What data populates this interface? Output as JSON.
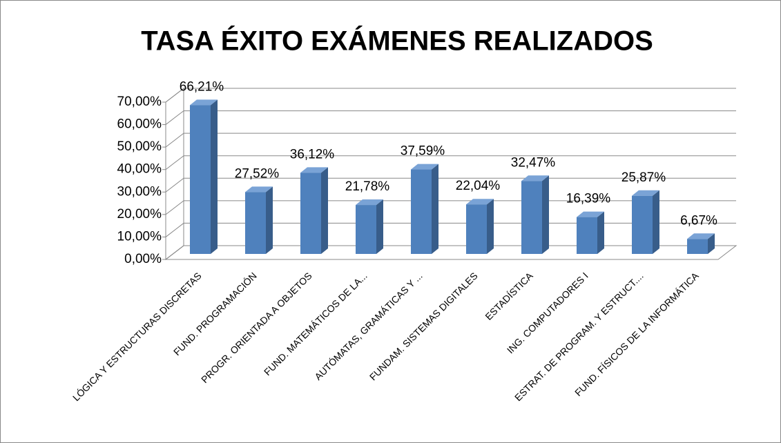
{
  "chart_data": {
    "type": "bar3d",
    "title": "TASA ÉXITO EXÁMENES REALIZADOS",
    "categories": [
      "LÓGICA Y ESTRUCTURAS DISCRETAS",
      "FUND. PROGRAMACIÓN",
      "PROGR. ORIENTADA A OBJETOS",
      "FUND. MATEMÁTICOS DE LA...",
      "AUTÓMATAS, GRAMÁTICAS Y ...",
      "FUNDAM. SISTEMAS DIGITALES",
      "ESTADÍSTICA",
      "ING. COMPUTADORES I",
      "ESTRAT. DE PROGRAM. Y ESTRUCT....",
      "FUND. FÍSICOS DE LA INFORMÁTICA"
    ],
    "values": [
      66.21,
      27.52,
      36.12,
      21.78,
      37.59,
      22.04,
      32.47,
      16.39,
      25.87,
      6.67
    ],
    "value_labels": [
      "66,21%",
      "27,52%",
      "36,12%",
      "21,78%",
      "37,59%",
      "22,04%",
      "32,47%",
      "16,39%",
      "25,87%",
      "6,67%"
    ],
    "color": "#4f81bd",
    "ylim": [
      0,
      70
    ],
    "yticks": [
      {
        "value": 0,
        "label": "0,00%"
      },
      {
        "value": 10,
        "label": "10,00%"
      },
      {
        "value": 20,
        "label": "20,00%"
      },
      {
        "value": 30,
        "label": "30,00%"
      },
      {
        "value": 40,
        "label": "40,00%"
      },
      {
        "value": 50,
        "label": "50,00%"
      },
      {
        "value": 60,
        "label": "60,00%"
      },
      {
        "value": 70,
        "label": "70,00%"
      }
    ],
    "grid": true
  }
}
